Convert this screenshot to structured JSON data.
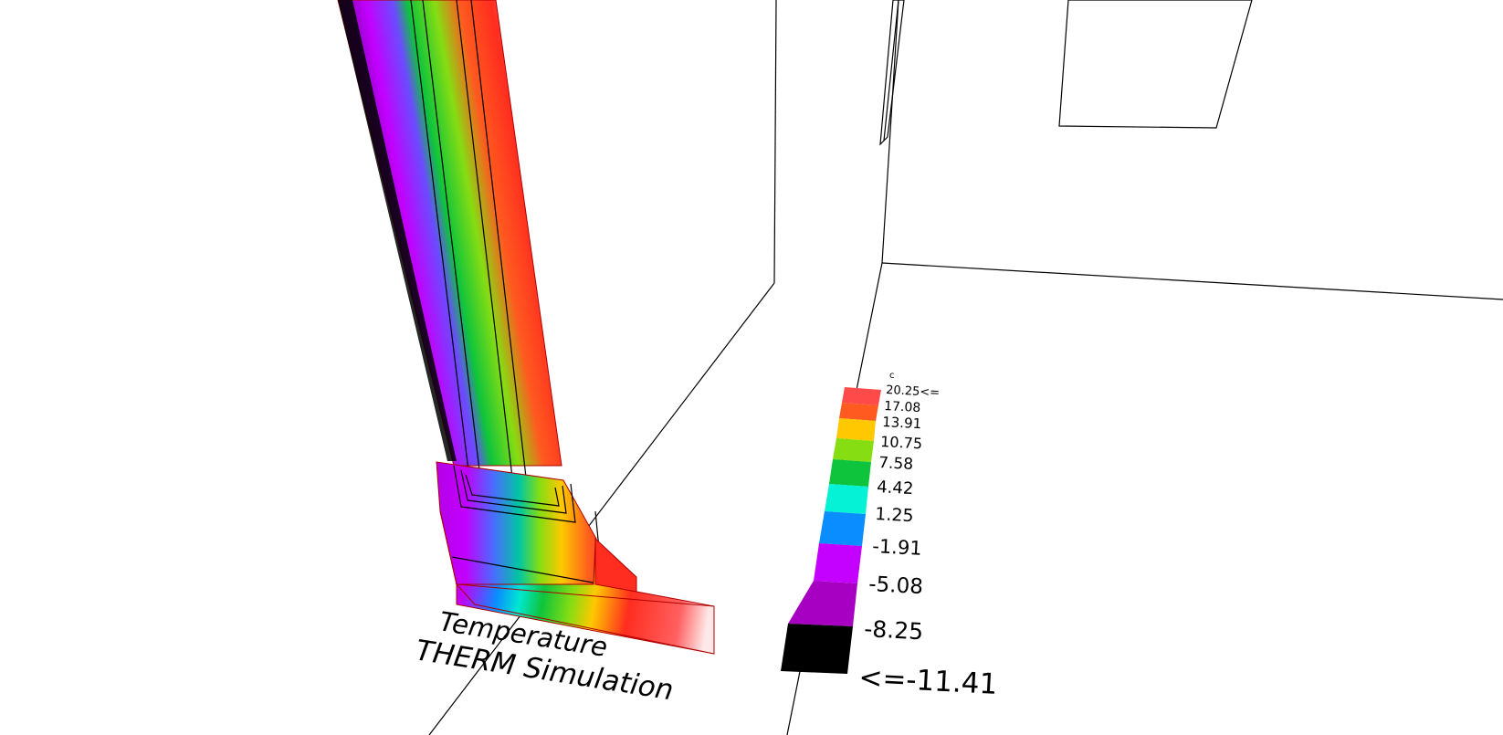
{
  "caption": {
    "line1": "Temperature",
    "line2": "THERM Simulation"
  },
  "legend": {
    "unit": "c",
    "entries": [
      {
        "label": "20.25<=",
        "color": "#ff4a4a"
      },
      {
        "label": "17.08",
        "color": "#ff5a1f"
      },
      {
        "label": "13.91",
        "color": "#ffc800"
      },
      {
        "label": "10.75",
        "color": "#86dd12"
      },
      {
        "label": "7.58",
        "color": "#0ec43c"
      },
      {
        "label": "4.42",
        "color": "#06f2d6"
      },
      {
        "label": "1.25",
        "color": "#0a8dff"
      },
      {
        "label": "-1.91",
        "color": "#c400ff"
      },
      {
        "label": "-5.08",
        "color": "#a800c2"
      },
      {
        "label": "-8.25",
        "color": "#000000"
      },
      {
        "label": "<=-11.41",
        "color": "#000000"
      }
    ]
  },
  "colors": {
    "gradient_cold": "#000000",
    "gradient_mid1": "#9a00c8",
    "gradient_mid2": "#c300ff",
    "gradient_mid3": "#0a8dff",
    "gradient_mid4": "#00e8d0",
    "gradient_mid5": "#0ec43c",
    "gradient_mid6": "#86dd12",
    "gradient_mid7": "#ffc800",
    "gradient_hot": "#ff2d1f",
    "gradient_warm_end": "#ffe8e8"
  }
}
